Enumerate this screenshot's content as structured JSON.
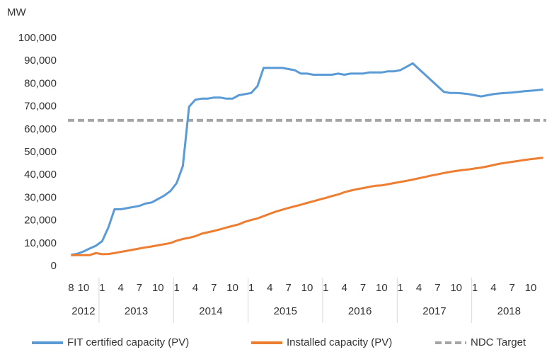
{
  "chart_data": {
    "type": "line",
    "y_label": "MW",
    "categories": [
      "8",
      null,
      "10",
      null,
      null,
      "1",
      null,
      null,
      "4",
      null,
      null,
      "7",
      null,
      null,
      "10",
      null,
      null,
      "1",
      null,
      null,
      "4",
      null,
      null,
      "7",
      null,
      null,
      "10",
      null,
      null,
      "1",
      null,
      null,
      "4",
      null,
      null,
      "7",
      null,
      null,
      "10",
      null,
      null,
      "1",
      null,
      null,
      "4",
      null,
      null,
      "7",
      null,
      null,
      "10",
      null,
      null,
      "1",
      null,
      null,
      "4",
      null,
      null,
      "7",
      null,
      null,
      "10",
      null,
      null,
      "1",
      null,
      null,
      "4",
      null,
      null,
      "7",
      null,
      null,
      "10",
      null,
      null
    ],
    "years": [
      "2012",
      "2013",
      "2014",
      "2015",
      "2016",
      "2017",
      "2018"
    ],
    "series": [
      {
        "name": "FIT certified capacity (PV)",
        "color": "#5b9bd5",
        "values": [
          5000,
          5500,
          6500,
          7800,
          9000,
          11000,
          17000,
          25000,
          25000,
          25500,
          26000,
          26500,
          27500,
          28000,
          29500,
          31000,
          33000,
          36500,
          44000,
          70000,
          73000,
          73500,
          73500,
          74000,
          74000,
          73500,
          73500,
          75000,
          75500,
          76000,
          79000,
          87000,
          87000,
          87000,
          87000,
          86500,
          86000,
          84500,
          84500,
          84000,
          84000,
          84000,
          84000,
          84500,
          84000,
          84500,
          84500,
          84500,
          85000,
          85000,
          85000,
          85500,
          85500,
          86000,
          87500,
          89000,
          86500,
          84000,
          81500,
          79000,
          76500,
          76000,
          76000,
          75800,
          75500,
          75000,
          74500,
          75000,
          75500,
          75800,
          76000,
          76200,
          76500,
          76800,
          77000,
          77200,
          77500
        ]
      },
      {
        "name": "Installed capacity (PV)",
        "color": "#ed7d31",
        "values": [
          4800,
          4900,
          4900,
          4900,
          5800,
          5300,
          5400,
          5800,
          6300,
          6800,
          7300,
          7800,
          8300,
          8700,
          9200,
          9700,
          10200,
          11200,
          12000,
          12500,
          13200,
          14300,
          14900,
          15500,
          16200,
          17000,
          17700,
          18400,
          19500,
          20300,
          21000,
          22000,
          23000,
          24000,
          24800,
          25600,
          26300,
          27000,
          27800,
          28500,
          29300,
          30000,
          30800,
          31500,
          32500,
          33200,
          33800,
          34300,
          34800,
          35300,
          35500,
          36000,
          36500,
          37000,
          37500,
          38000,
          38600,
          39200,
          39800,
          40300,
          40900,
          41400,
          41800,
          42200,
          42500,
          42900,
          43300,
          43800,
          44400,
          45000,
          45400,
          45800,
          46200,
          46600,
          47000,
          47300,
          47600
        ]
      }
    ],
    "reference_line": {
      "name": "NDC Target",
      "value": 64000,
      "color": "#a5a5a5"
    },
    "ylim": [
      0,
      100000
    ],
    "yticks": [
      0,
      {
        "value": 10000,
        "label": "10,000"
      },
      {
        "value": 20000,
        "label": "20,000"
      },
      {
        "value": 30000,
        "label": "30,000"
      },
      {
        "value": 40000,
        "label": "40,000"
      },
      {
        "value": 50000,
        "label": "50,000"
      },
      {
        "value": 60000,
        "label": "60,000"
      },
      {
        "value": 70000,
        "label": "70,000"
      },
      {
        "value": 80000,
        "label": "80,000"
      },
      {
        "value": 90000,
        "label": "90,000"
      },
      {
        "value": 100000,
        "label": "100,000"
      }
    ]
  }
}
